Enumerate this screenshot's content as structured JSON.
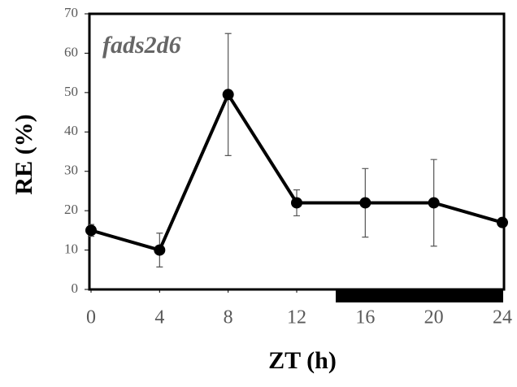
{
  "chart_data": {
    "type": "line",
    "annotation": "fads2d6",
    "x_label": "ZT (h)",
    "y_label": "RE (%)",
    "x": [
      0,
      4,
      8,
      12,
      16,
      20,
      24
    ],
    "series": [
      {
        "color": "#000000",
        "values": [
          15,
          10,
          49.5,
          22,
          22,
          22,
          17
        ],
        "errors": [
          1.5,
          4.3,
          15.5,
          3.3,
          8.7,
          11,
          1
        ]
      }
    ],
    "xlim": [
      0,
      24
    ],
    "xticks": [
      0,
      4,
      8,
      12,
      16,
      20,
      24
    ],
    "ylim": [
      0,
      70
    ],
    "yticks": [
      0,
      10,
      20,
      30,
      40,
      50,
      60,
      70
    ]
  }
}
